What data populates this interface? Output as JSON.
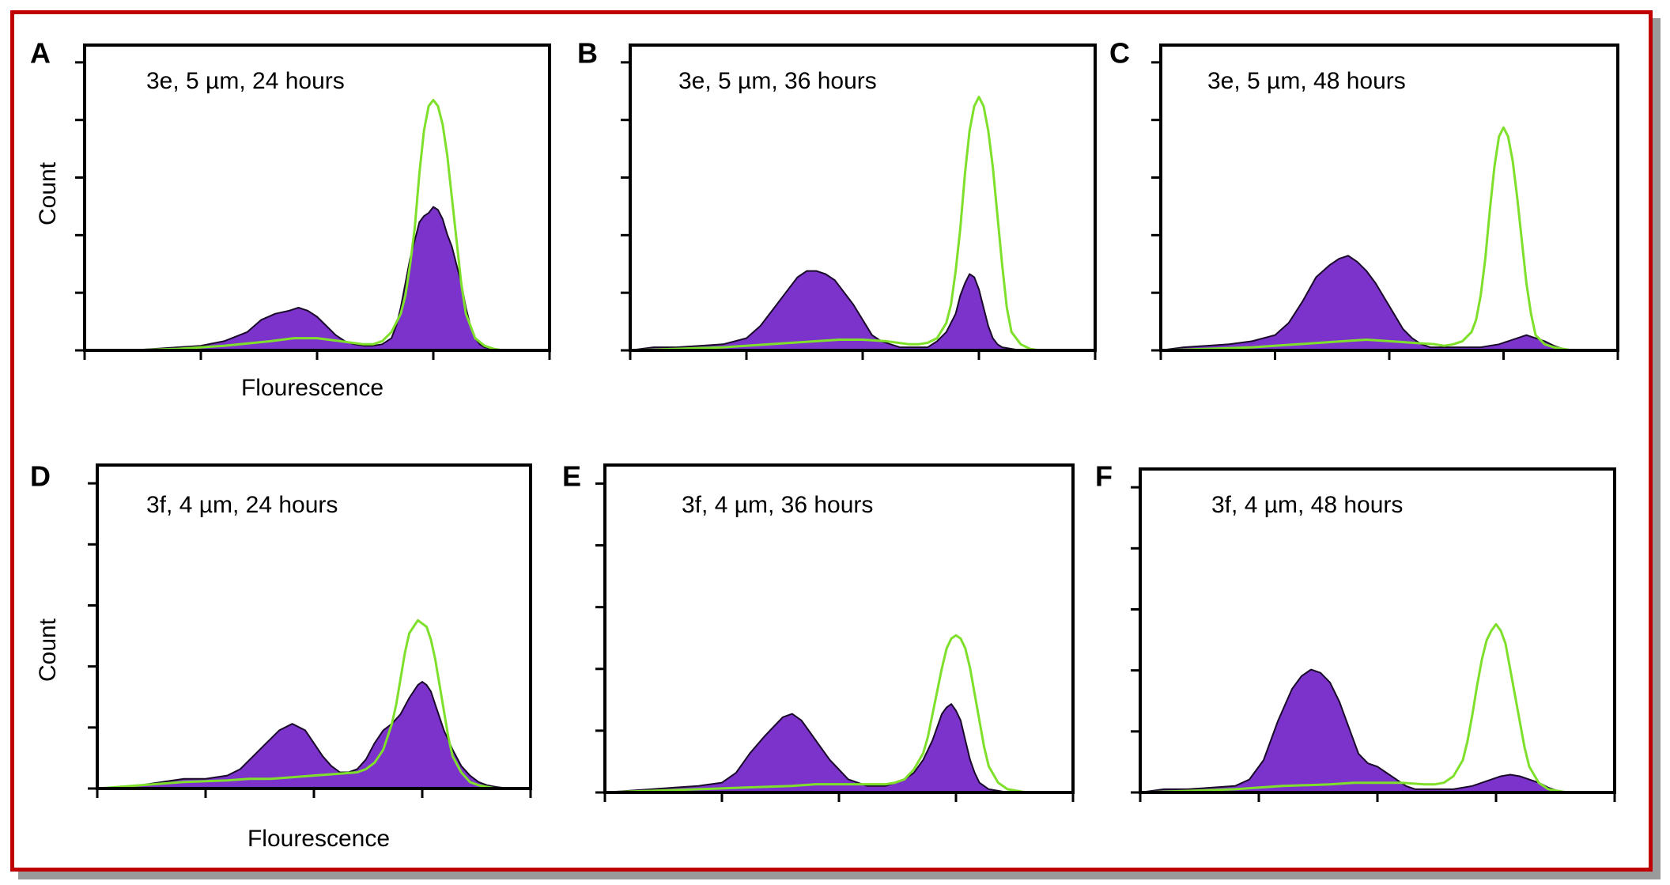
{
  "colors": {
    "frame": "#c00000",
    "shadow": "#9a9a9a",
    "treated_fill": "#7b33cc",
    "treated_edge": "#1a0a2a",
    "control_line": "#7ee02a"
  },
  "chart_data": [
    {
      "type": "area",
      "panel": "A",
      "title": "3e, 5 µm, 24 hours",
      "xlabel": "Flourescence",
      "ylabel": "Count",
      "xlim": [
        0,
        100
      ],
      "ylim": [
        0,
        100
      ],
      "series": [
        {
          "role": "treated",
          "style": "filled",
          "x": [
            0,
            10,
            15,
            20,
            25,
            30,
            35,
            38,
            41,
            44,
            46,
            48,
            50,
            52,
            54,
            56,
            58,
            60,
            62,
            64,
            66,
            67,
            68,
            70,
            72,
            73,
            74,
            75,
            76,
            77,
            78,
            79,
            80,
            81,
            82,
            83,
            84,
            85,
            86,
            88,
            90,
            92,
            95,
            100
          ],
          "y": [
            0,
            0,
            0.5,
            1,
            1.5,
            3,
            6,
            10,
            12,
            13,
            14,
            13,
            11,
            8,
            5,
            3,
            2,
            1.5,
            1.5,
            2,
            4,
            8,
            14,
            30,
            42,
            44,
            45,
            47,
            46,
            43,
            38,
            34,
            28,
            22,
            14,
            8,
            4,
            2,
            1,
            0.5,
            0,
            0,
            0,
            0
          ]
        },
        {
          "role": "control",
          "style": "line",
          "x": [
            0,
            10,
            20,
            30,
            40,
            45,
            50,
            55,
            60,
            62,
            64,
            66,
            68,
            69,
            70,
            71,
            72,
            73,
            74,
            75,
            76,
            77,
            78,
            79,
            80,
            81,
            82,
            84,
            86,
            88,
            90,
            92,
            95,
            100
          ],
          "y": [
            0,
            0,
            0.5,
            1.5,
            3,
            4,
            4,
            3,
            2,
            2,
            3,
            6,
            12,
            18,
            28,
            40,
            58,
            72,
            80,
            82,
            80,
            74,
            64,
            50,
            36,
            22,
            12,
            4,
            1.5,
            0.5,
            0,
            0,
            0,
            0
          ]
        }
      ]
    },
    {
      "type": "area",
      "panel": "B",
      "title": "3e, 5 µm, 36 hours",
      "xlabel": "",
      "ylabel": "",
      "xlim": [
        0,
        100
      ],
      "ylim": [
        0,
        100
      ],
      "series": [
        {
          "role": "treated",
          "style": "filled",
          "x": [
            0,
            5,
            10,
            15,
            20,
            25,
            28,
            31,
            34,
            36,
            38,
            40,
            42,
            44,
            46,
            48,
            50,
            52,
            54,
            56,
            58,
            60,
            62,
            64,
            66,
            68,
            70,
            71,
            72,
            73,
            74,
            75,
            76,
            77,
            78,
            79,
            80,
            82,
            84,
            86,
            88,
            90,
            95,
            100
          ],
          "y": [
            0,
            1,
            1,
            1.5,
            2,
            4,
            8,
            14,
            20,
            24,
            26,
            26,
            25,
            23,
            19,
            15,
            10,
            5,
            3,
            2,
            1,
            1,
            1,
            1,
            3,
            6,
            12,
            18,
            22,
            25,
            24,
            20,
            14,
            8,
            4,
            2,
            1,
            0.5,
            0,
            0,
            0,
            0,
            0,
            0
          ]
        },
        {
          "role": "control",
          "style": "line",
          "x": [
            0,
            10,
            20,
            30,
            40,
            45,
            50,
            55,
            60,
            62,
            64,
            66,
            68,
            69,
            70,
            71,
            72,
            73,
            74,
            75,
            76,
            77,
            78,
            79,
            80,
            81,
            82,
            84,
            86,
            88,
            90,
            92,
            95,
            100
          ],
          "y": [
            0,
            0.5,
            1,
            2,
            3,
            3.5,
            3.5,
            3,
            2,
            2,
            2.5,
            4,
            9,
            15,
            26,
            40,
            58,
            72,
            80,
            83,
            80,
            72,
            60,
            44,
            28,
            14,
            6,
            2,
            0.5,
            0,
            0,
            0,
            0,
            0
          ]
        }
      ]
    },
    {
      "type": "area",
      "panel": "C",
      "title": "3e, 5 µm, 48 hours",
      "xlabel": "",
      "ylabel": "",
      "xlim": [
        0,
        100
      ],
      "ylim": [
        0,
        100
      ],
      "series": [
        {
          "role": "treated",
          "style": "filled",
          "x": [
            0,
            5,
            10,
            15,
            20,
            25,
            28,
            31,
            34,
            37,
            39,
            41,
            43,
            45,
            47,
            49,
            51,
            53,
            55,
            57,
            59,
            61,
            63,
            65,
            67,
            70,
            72,
            74,
            76,
            78,
            80,
            82,
            84,
            86,
            88,
            90,
            95,
            100
          ],
          "y": [
            0,
            1,
            1.5,
            2,
            3,
            5,
            9,
            16,
            24,
            28,
            30,
            31,
            29,
            26,
            22,
            17,
            12,
            7,
            4,
            2,
            1,
            1,
            1,
            1,
            1,
            1,
            1.5,
            2,
            3,
            4,
            5,
            4,
            3,
            1.5,
            0.5,
            0,
            0,
            0
          ]
        },
        {
          "role": "control",
          "style": "line",
          "x": [
            0,
            10,
            20,
            30,
            40,
            45,
            50,
            55,
            60,
            62,
            64,
            66,
            68,
            69,
            70,
            71,
            72,
            73,
            74,
            75,
            76,
            77,
            78,
            79,
            80,
            81,
            82,
            84,
            86,
            88,
            90,
            92,
            95,
            100
          ],
          "y": [
            0,
            0.5,
            1,
            2,
            3,
            3.5,
            3,
            2.5,
            2,
            1.5,
            2,
            3,
            6,
            10,
            18,
            30,
            46,
            60,
            70,
            73,
            70,
            62,
            50,
            36,
            22,
            12,
            5,
            2,
            1,
            0.5,
            0,
            0,
            0,
            0
          ]
        }
      ]
    },
    {
      "type": "area",
      "panel": "D",
      "title": "3f, 4 µm, 24 hours",
      "xlabel": "Flourescence",
      "ylabel": "Count",
      "xlim": [
        0,
        100
      ],
      "ylim": [
        0,
        100
      ],
      "series": [
        {
          "role": "treated",
          "style": "filled",
          "x": [
            0,
            10,
            15,
            20,
            25,
            30,
            33,
            36,
            39,
            42,
            45,
            48,
            50,
            52,
            54,
            56,
            58,
            60,
            62,
            64,
            66,
            68,
            70,
            72,
            73,
            74,
            75,
            76,
            77,
            78,
            79,
            80,
            82,
            84,
            86,
            88,
            90,
            92,
            95,
            100
          ],
          "y": [
            0,
            1,
            2,
            3,
            3,
            4,
            6,
            10,
            14,
            18,
            20,
            18,
            14,
            10,
            7,
            5,
            5,
            6,
            9,
            14,
            18,
            20,
            23,
            28,
            30,
            32,
            33,
            32,
            30,
            26,
            22,
            18,
            12,
            7,
            4,
            2,
            1,
            0.5,
            0,
            0
          ]
        },
        {
          "role": "control",
          "style": "line",
          "x": [
            0,
            10,
            20,
            30,
            35,
            40,
            45,
            50,
            55,
            60,
            62,
            64,
            66,
            68,
            69,
            70,
            71,
            72,
            73,
            74,
            75,
            76,
            77,
            78,
            79,
            80,
            81,
            82,
            84,
            86,
            88,
            90,
            92,
            95,
            100
          ],
          "y": [
            0,
            1,
            2,
            2.5,
            3,
            3,
            3.5,
            4,
            4.5,
            5,
            6,
            8,
            12,
            20,
            26,
            34,
            42,
            48,
            50,
            52,
            51,
            50,
            46,
            40,
            32,
            24,
            16,
            10,
            5,
            2,
            1,
            0.5,
            0,
            0,
            0
          ]
        }
      ]
    },
    {
      "type": "area",
      "panel": "E",
      "title": "3f, 4 µm, 36 hours",
      "xlabel": "",
      "ylabel": "",
      "xlim": [
        0,
        100
      ],
      "ylim": [
        0,
        100
      ],
      "series": [
        {
          "role": "treated",
          "style": "filled",
          "x": [
            0,
            5,
            10,
            15,
            20,
            25,
            28,
            31,
            34,
            36,
            38,
            40,
            42,
            44,
            46,
            48,
            50,
            52,
            54,
            56,
            58,
            60,
            62,
            64,
            66,
            68,
            70,
            71,
            72,
            73,
            74,
            75,
            76,
            77,
            78,
            79,
            80,
            82,
            84,
            86,
            88,
            90,
            95,
            100
          ],
          "y": [
            0,
            0.5,
            1,
            1.5,
            2,
            3,
            6,
            12,
            17,
            20,
            23,
            24,
            22,
            18,
            14,
            10,
            7,
            4,
            3,
            2,
            2,
            2,
            3,
            4,
            6,
            10,
            16,
            20,
            24,
            26,
            27,
            25,
            22,
            16,
            10,
            6,
            3,
            1,
            0.5,
            0,
            0,
            0,
            0,
            0
          ]
        },
        {
          "role": "control",
          "style": "line",
          "x": [
            0,
            10,
            20,
            30,
            40,
            45,
            50,
            55,
            60,
            62,
            64,
            66,
            68,
            69,
            70,
            71,
            72,
            73,
            74,
            75,
            76,
            77,
            78,
            79,
            80,
            81,
            82,
            84,
            86,
            88,
            90,
            92,
            95,
            100
          ],
          "y": [
            0,
            0.5,
            1,
            1.5,
            2,
            2.5,
            2.5,
            2.5,
            2.5,
            3,
            4,
            7,
            12,
            17,
            24,
            31,
            38,
            44,
            47,
            48,
            47,
            44,
            38,
            30,
            22,
            14,
            8,
            3,
            1,
            0.5,
            0,
            0,
            0,
            0
          ]
        }
      ]
    },
    {
      "type": "area",
      "panel": "F",
      "title": "3f, 4 µm, 48 hours",
      "xlabel": "",
      "ylabel": "",
      "xlim": [
        0,
        100
      ],
      "ylim": [
        0,
        100
      ],
      "series": [
        {
          "role": "treated",
          "style": "filled",
          "x": [
            0,
            5,
            10,
            15,
            20,
            23,
            26,
            29,
            32,
            34,
            36,
            38,
            40,
            42,
            44,
            46,
            48,
            50,
            52,
            54,
            56,
            58,
            60,
            62,
            64,
            66,
            68,
            70,
            72,
            74,
            76,
            78,
            80,
            82,
            84,
            86,
            88,
            90,
            95,
            100
          ],
          "y": [
            0,
            1,
            1,
            1.5,
            2,
            4,
            10,
            22,
            32,
            36,
            38,
            37,
            34,
            28,
            20,
            12,
            9,
            8,
            6,
            4,
            2,
            1,
            1,
            1,
            1,
            1,
            1.5,
            2,
            3,
            4,
            5,
            5.5,
            5,
            4,
            3,
            1.5,
            0.5,
            0,
            0,
            0
          ]
        },
        {
          "role": "control",
          "style": "line",
          "x": [
            0,
            10,
            20,
            30,
            40,
            45,
            50,
            55,
            60,
            62,
            64,
            66,
            68,
            69,
            70,
            71,
            72,
            73,
            74,
            75,
            76,
            77,
            78,
            79,
            80,
            81,
            82,
            84,
            86,
            88,
            90,
            92,
            95,
            100
          ],
          "y": [
            0,
            0.5,
            1,
            2,
            2.5,
            3,
            3,
            3,
            2.5,
            2.5,
            3,
            5,
            10,
            16,
            24,
            33,
            41,
            47,
            50,
            52,
            50,
            46,
            38,
            30,
            22,
            14,
            8,
            3,
            1,
            0.5,
            0,
            0,
            0,
            0
          ]
        }
      ]
    }
  ]
}
